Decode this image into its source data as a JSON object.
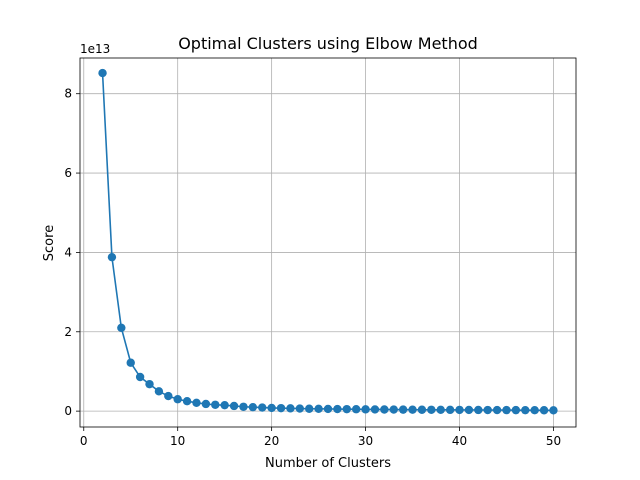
{
  "chart_data": {
    "type": "line",
    "title": "Optimal Clusters using Elbow Method",
    "xlabel": "Number of Clusters",
    "ylabel": "Score",
    "y_offset_label": "1e13",
    "xlim": [
      -0.4,
      52.4
    ],
    "ylim": [
      -0.4,
      8.9
    ],
    "x_ticks": [
      0,
      10,
      20,
      30,
      40,
      50
    ],
    "y_ticks": [
      0,
      2,
      4,
      6,
      8
    ],
    "grid": true,
    "marker": "circle",
    "line_color": "#1f77b4",
    "x": [
      2,
      3,
      4,
      5,
      6,
      7,
      8,
      9,
      10,
      11,
      12,
      13,
      14,
      15,
      16,
      17,
      18,
      19,
      20,
      21,
      22,
      23,
      24,
      25,
      26,
      27,
      28,
      29,
      30,
      31,
      32,
      33,
      34,
      35,
      36,
      37,
      38,
      39,
      40,
      41,
      42,
      43,
      44,
      45,
      46,
      47,
      48,
      49,
      50
    ],
    "y": [
      8.52,
      3.88,
      2.1,
      1.22,
      0.86,
      0.68,
      0.5,
      0.38,
      0.3,
      0.25,
      0.21,
      0.18,
      0.16,
      0.15,
      0.13,
      0.11,
      0.1,
      0.09,
      0.08,
      0.075,
      0.07,
      0.065,
      0.06,
      0.058,
      0.055,
      0.052,
      0.05,
      0.048,
      0.045,
      0.043,
      0.041,
      0.04,
      0.038,
      0.037,
      0.035,
      0.034,
      0.033,
      0.032,
      0.031,
      0.03,
      0.029,
      0.028,
      0.027,
      0.026,
      0.025,
      0.024,
      0.023,
      0.022,
      0.021
    ]
  }
}
